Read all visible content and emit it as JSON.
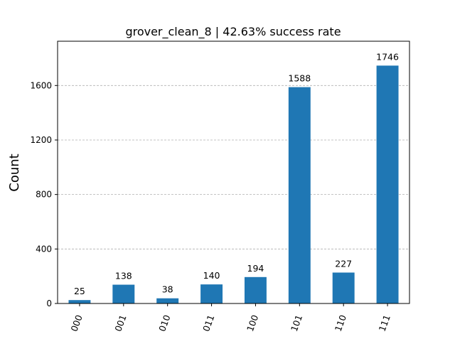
{
  "chart_data": {
    "type": "bar",
    "title": "grover_clean_8 | 42.63% success rate",
    "xlabel": "",
    "ylabel": "Count",
    "categories": [
      "000",
      "001",
      "010",
      "011",
      "100",
      "101",
      "110",
      "111"
    ],
    "values": [
      25,
      138,
      38,
      140,
      194,
      1588,
      227,
      1746
    ],
    "ylim": [
      0,
      1925
    ],
    "yticks": [
      0,
      400,
      800,
      1200,
      1600
    ],
    "grid": "horizontal dashed",
    "colors": {
      "bar": "#1f77b4",
      "grid": "#b0b0b0",
      "axis": "#000000"
    }
  }
}
